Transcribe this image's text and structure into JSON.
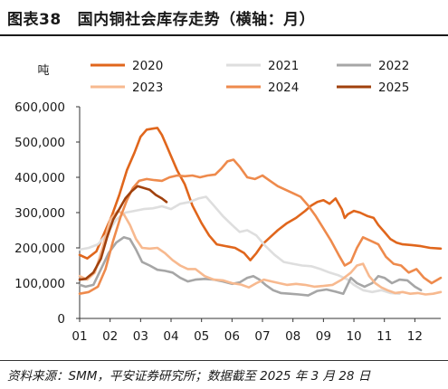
{
  "header": {
    "figure_label": "图表38",
    "title": "国内铜社会库存走势（横轴：月）"
  },
  "footnote": "资料来源：SMM，平安证券研究所；数据截至 2025 年 3 月 28 日",
  "chart_data": {
    "type": "line",
    "title": "国内铜社会库存走势（横轴：月）",
    "ylabel": "吨",
    "xlabel": "",
    "ylim": [
      0,
      600000
    ],
    "yticks": [
      "0",
      "100,000",
      "200,000",
      "300,000",
      "400,000",
      "500,000",
      "600,000"
    ],
    "ytick_values": [
      0,
      100000,
      200000,
      300000,
      400000,
      500000,
      600000
    ],
    "xlim": [
      1,
      12.85
    ],
    "xticks": [
      "01",
      "02",
      "03",
      "04",
      "05",
      "06",
      "07",
      "08",
      "09",
      "10",
      "11",
      "12"
    ],
    "grid": false,
    "legend_position": "top",
    "series": [
      {
        "name": "2020",
        "color": "#E0661C",
        "points": [
          [
            1.0,
            180000
          ],
          [
            1.25,
            170000
          ],
          [
            1.55,
            190000
          ],
          [
            1.8,
            240000
          ],
          [
            2.05,
            290000
          ],
          [
            2.3,
            350000
          ],
          [
            2.55,
            420000
          ],
          [
            2.8,
            470000
          ],
          [
            3.0,
            515000
          ],
          [
            3.2,
            535000
          ],
          [
            3.4,
            538000
          ],
          [
            3.55,
            540000
          ],
          [
            3.7,
            520000
          ],
          [
            3.85,
            490000
          ],
          [
            4.0,
            460000
          ],
          [
            4.2,
            420000
          ],
          [
            4.45,
            380000
          ],
          [
            4.7,
            320000
          ],
          [
            5.0,
            270000
          ],
          [
            5.25,
            235000
          ],
          [
            5.5,
            210000
          ],
          [
            5.8,
            205000
          ],
          [
            6.1,
            200000
          ],
          [
            6.4,
            185000
          ],
          [
            6.6,
            165000
          ],
          [
            6.8,
            185000
          ],
          [
            7.0,
            210000
          ],
          [
            7.25,
            230000
          ],
          [
            7.5,
            250000
          ],
          [
            7.8,
            270000
          ],
          [
            8.1,
            285000
          ],
          [
            8.4,
            305000
          ],
          [
            8.6,
            320000
          ],
          [
            8.8,
            330000
          ],
          [
            9.0,
            335000
          ],
          [
            9.2,
            325000
          ],
          [
            9.4,
            340000
          ],
          [
            9.6,
            310000
          ],
          [
            9.7,
            285000
          ],
          [
            9.8,
            295000
          ],
          [
            10.0,
            305000
          ],
          [
            10.2,
            300000
          ],
          [
            10.45,
            290000
          ],
          [
            10.65,
            285000
          ],
          [
            10.8,
            265000
          ],
          [
            11.0,
            245000
          ],
          [
            11.2,
            225000
          ],
          [
            11.4,
            215000
          ],
          [
            11.6,
            210000
          ],
          [
            11.9,
            208000
          ],
          [
            12.2,
            205000
          ],
          [
            12.5,
            200000
          ],
          [
            12.85,
            198000
          ]
        ]
      },
      {
        "name": "2021",
        "color": "#DEDEDE",
        "points": [
          [
            1.0,
            195000
          ],
          [
            1.3,
            200000
          ],
          [
            1.6,
            210000
          ],
          [
            1.9,
            240000
          ],
          [
            2.2,
            280000
          ],
          [
            2.5,
            300000
          ],
          [
            2.8,
            305000
          ],
          [
            3.1,
            310000
          ],
          [
            3.4,
            312000
          ],
          [
            3.7,
            318000
          ],
          [
            4.0,
            310000
          ],
          [
            4.3,
            325000
          ],
          [
            4.6,
            330000
          ],
          [
            4.9,
            340000
          ],
          [
            5.15,
            345000
          ],
          [
            5.4,
            320000
          ],
          [
            5.7,
            290000
          ],
          [
            6.0,
            265000
          ],
          [
            6.25,
            245000
          ],
          [
            6.5,
            250000
          ],
          [
            6.8,
            235000
          ],
          [
            7.1,
            205000
          ],
          [
            7.4,
            180000
          ],
          [
            7.7,
            160000
          ],
          [
            8.0,
            155000
          ],
          [
            8.3,
            150000
          ],
          [
            8.6,
            148000
          ],
          [
            8.9,
            140000
          ],
          [
            9.2,
            130000
          ],
          [
            9.5,
            122000
          ],
          [
            9.8,
            110000
          ],
          [
            10.0,
            95000
          ],
          [
            10.3,
            80000
          ],
          [
            10.6,
            75000
          ],
          [
            10.9,
            80000
          ],
          [
            11.2,
            72000
          ],
          [
            11.5,
            70000
          ]
        ]
      },
      {
        "name": "2022",
        "color": "#A6A6A6",
        "points": [
          [
            1.0,
            95000
          ],
          [
            1.2,
            90000
          ],
          [
            1.45,
            95000
          ],
          [
            1.7,
            140000
          ],
          [
            1.95,
            185000
          ],
          [
            2.2,
            215000
          ],
          [
            2.45,
            230000
          ],
          [
            2.65,
            225000
          ],
          [
            2.85,
            195000
          ],
          [
            3.05,
            160000
          ],
          [
            3.3,
            150000
          ],
          [
            3.55,
            138000
          ],
          [
            3.8,
            135000
          ],
          [
            4.05,
            130000
          ],
          [
            4.3,
            115000
          ],
          [
            4.55,
            105000
          ],
          [
            4.8,
            110000
          ],
          [
            5.1,
            112000
          ],
          [
            5.4,
            110000
          ],
          [
            5.7,
            105000
          ],
          [
            6.0,
            98000
          ],
          [
            6.25,
            102000
          ],
          [
            6.5,
            115000
          ],
          [
            6.7,
            120000
          ],
          [
            6.9,
            110000
          ],
          [
            7.1,
            95000
          ],
          [
            7.35,
            80000
          ],
          [
            7.6,
            72000
          ],
          [
            7.9,
            70000
          ],
          [
            8.2,
            68000
          ],
          [
            8.5,
            65000
          ],
          [
            8.8,
            78000
          ],
          [
            9.1,
            82000
          ],
          [
            9.4,
            76000
          ],
          [
            9.65,
            70000
          ],
          [
            9.9,
            115000
          ],
          [
            10.1,
            100000
          ],
          [
            10.35,
            90000
          ],
          [
            10.6,
            100000
          ],
          [
            10.8,
            120000
          ],
          [
            11.0,
            115000
          ],
          [
            11.25,
            100000
          ],
          [
            11.5,
            110000
          ],
          [
            11.75,
            108000
          ],
          [
            12.0,
            90000
          ],
          [
            12.2,
            80000
          ]
        ]
      },
      {
        "name": "2023",
        "color": "#F7B98F",
        "points": [
          [
            1.0,
            120000
          ],
          [
            1.25,
            110000
          ],
          [
            1.5,
            130000
          ],
          [
            1.75,
            200000
          ],
          [
            2.0,
            280000
          ],
          [
            2.25,
            305000
          ],
          [
            2.45,
            295000
          ],
          [
            2.65,
            265000
          ],
          [
            2.85,
            225000
          ],
          [
            3.05,
            200000
          ],
          [
            3.3,
            198000
          ],
          [
            3.55,
            200000
          ],
          [
            3.8,
            185000
          ],
          [
            4.05,
            165000
          ],
          [
            4.3,
            150000
          ],
          [
            4.55,
            140000
          ],
          [
            4.8,
            140000
          ],
          [
            5.1,
            120000
          ],
          [
            5.4,
            110000
          ],
          [
            5.7,
            108000
          ],
          [
            6.0,
            100000
          ],
          [
            6.3,
            96000
          ],
          [
            6.55,
            88000
          ],
          [
            6.8,
            100000
          ],
          [
            7.05,
            110000
          ],
          [
            7.3,
            105000
          ],
          [
            7.55,
            100000
          ],
          [
            7.8,
            95000
          ],
          [
            8.1,
            98000
          ],
          [
            8.4,
            95000
          ],
          [
            8.7,
            90000
          ],
          [
            9.0,
            92000
          ],
          [
            9.3,
            95000
          ],
          [
            9.6,
            110000
          ],
          [
            9.9,
            130000
          ],
          [
            10.1,
            150000
          ],
          [
            10.3,
            155000
          ],
          [
            10.5,
            120000
          ],
          [
            10.7,
            100000
          ],
          [
            10.9,
            88000
          ],
          [
            11.1,
            80000
          ],
          [
            11.35,
            72000
          ],
          [
            11.6,
            75000
          ],
          [
            11.85,
            70000
          ],
          [
            12.1,
            72000
          ],
          [
            12.35,
            68000
          ],
          [
            12.6,
            70000
          ],
          [
            12.85,
            75000
          ]
        ]
      },
      {
        "name": "2024",
        "color": "#EE8A4C",
        "points": [
          [
            1.0,
            70000
          ],
          [
            1.3,
            75000
          ],
          [
            1.6,
            90000
          ],
          [
            1.85,
            140000
          ],
          [
            2.1,
            220000
          ],
          [
            2.35,
            290000
          ],
          [
            2.55,
            335000
          ],
          [
            2.75,
            370000
          ],
          [
            2.95,
            390000
          ],
          [
            3.2,
            395000
          ],
          [
            3.45,
            392000
          ],
          [
            3.7,
            390000
          ],
          [
            3.95,
            400000
          ],
          [
            4.2,
            405000
          ],
          [
            4.45,
            403000
          ],
          [
            4.7,
            405000
          ],
          [
            4.95,
            400000
          ],
          [
            5.2,
            405000
          ],
          [
            5.45,
            408000
          ],
          [
            5.65,
            425000
          ],
          [
            5.85,
            445000
          ],
          [
            6.05,
            450000
          ],
          [
            6.25,
            430000
          ],
          [
            6.5,
            400000
          ],
          [
            6.75,
            395000
          ],
          [
            7.0,
            405000
          ],
          [
            7.25,
            390000
          ],
          [
            7.5,
            375000
          ],
          [
            7.75,
            365000
          ],
          [
            8.0,
            355000
          ],
          [
            8.25,
            345000
          ],
          [
            8.5,
            320000
          ],
          [
            8.75,
            290000
          ],
          [
            9.0,
            255000
          ],
          [
            9.25,
            220000
          ],
          [
            9.5,
            180000
          ],
          [
            9.7,
            150000
          ],
          [
            9.9,
            160000
          ],
          [
            10.1,
            200000
          ],
          [
            10.3,
            230000
          ],
          [
            10.55,
            220000
          ],
          [
            10.8,
            210000
          ],
          [
            11.05,
            175000
          ],
          [
            11.3,
            155000
          ],
          [
            11.55,
            150000
          ],
          [
            11.8,
            130000
          ],
          [
            12.05,
            140000
          ],
          [
            12.3,
            115000
          ],
          [
            12.55,
            100000
          ],
          [
            12.85,
            115000
          ]
        ]
      },
      {
        "name": "2025",
        "color": "#A0410D",
        "points": [
          [
            1.0,
            110000
          ],
          [
            1.2,
            112000
          ],
          [
            1.45,
            130000
          ],
          [
            1.7,
            170000
          ],
          [
            1.9,
            230000
          ],
          [
            2.1,
            280000
          ],
          [
            2.3,
            310000
          ],
          [
            2.5,
            340000
          ],
          [
            2.7,
            360000
          ],
          [
            2.9,
            375000
          ],
          [
            3.1,
            370000
          ],
          [
            3.3,
            365000
          ],
          [
            3.5,
            350000
          ],
          [
            3.7,
            340000
          ],
          [
            3.85,
            330000
          ]
        ]
      }
    ]
  }
}
